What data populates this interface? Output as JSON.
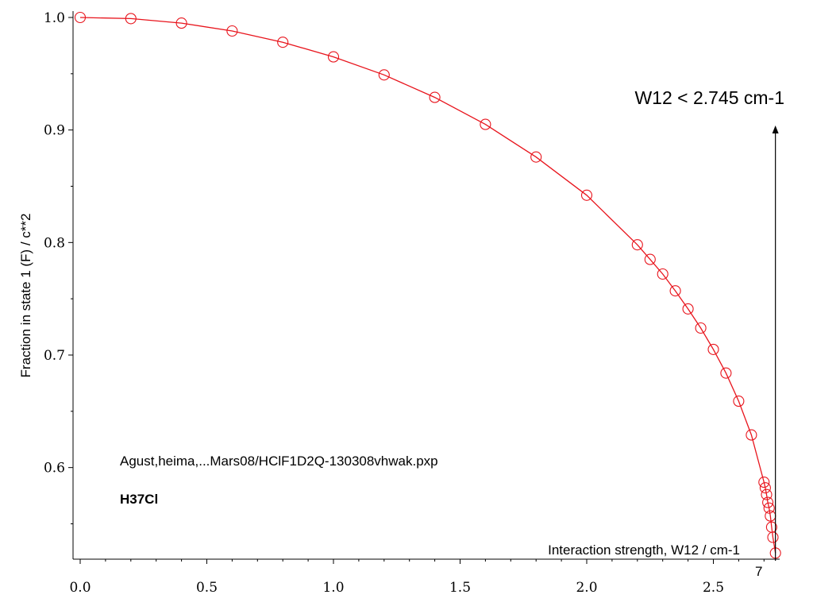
{
  "chart_data": {
    "type": "scatter",
    "title": "",
    "xlabel": "Interaction strength, W12 / cm-1",
    "ylabel": "Fraction in state 1 (F) / c**2",
    "xlim": [
      -0.03,
      2.76
    ],
    "ylim": [
      0.52,
      1.0
    ],
    "x_ticks": [
      0.0,
      0.5,
      1.0,
      1.5,
      2.0,
      2.5
    ],
    "x_tick_labels": [
      "0.0",
      "0.5",
      "1.0",
      "1.5",
      "2.0",
      "2.5"
    ],
    "y_ticks": [
      0.6,
      0.7,
      0.8,
      0.9,
      1.0
    ],
    "y_tick_labels": [
      "0.6",
      "0.7",
      "0.8",
      "0.9",
      "1.0"
    ],
    "grid": false,
    "legend": "none",
    "series": [
      {
        "marker": "open-circle",
        "line": "smooth",
        "color": "#e8141c",
        "x": [
          0.0,
          0.2,
          0.4,
          0.6,
          0.8,
          1.0,
          1.2,
          1.4,
          1.6,
          1.8,
          2.0,
          2.2,
          2.25,
          2.3,
          2.35,
          2.4,
          2.45,
          2.5,
          2.55,
          2.6,
          2.65,
          2.7,
          2.705,
          2.71,
          2.715,
          2.72,
          2.725,
          2.73,
          2.735,
          2.745
        ],
        "y": [
          1.0,
          0.999,
          0.995,
          0.988,
          0.978,
          0.965,
          0.949,
          0.929,
          0.905,
          0.876,
          0.842,
          0.798,
          0.785,
          0.772,
          0.757,
          0.741,
          0.724,
          0.705,
          0.684,
          0.659,
          0.629,
          0.587,
          0.582,
          0.576,
          0.569,
          0.564,
          0.557,
          0.547,
          0.538,
          0.524
        ]
      }
    ],
    "annotations": {
      "threshold_label": "W12 < 2.745 cm-1",
      "arrow_x": 2.745,
      "filename": "Agust,heima,...Mars08/HClF1D2Q-130308vhwak.pxp",
      "species": "H37Cl",
      "axis_end_label": "7"
    }
  }
}
